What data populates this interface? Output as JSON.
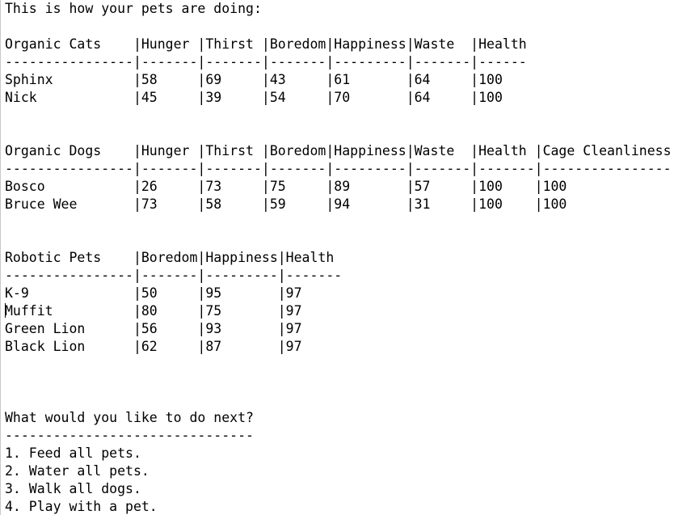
{
  "intro": "This is how your pets are doing:",
  "cats": {
    "header": "Organic Cats    |Hunger |Thirst |Boredom|Happiness|Waste  |Health",
    "separator": "----------------|-------|-------|-------|---------|-------|------",
    "rows": [
      "Sphinx          |58     |69     |43     |61       |64     |100",
      "Nick            |45     |39     |54     |70       |64     |100"
    ]
  },
  "dogs": {
    "header": "Organic Dogs    |Hunger |Thirst |Boredom|Happiness|Waste  |Health |Cage Cleanliness",
    "separator": "----------------|-------|-------|-------|---------|-------|-------|----------------",
    "rows": [
      "Bosco           |26     |73     |75     |89       |57     |100    |100",
      "Bruce Wee       |73     |58     |59     |94       |31     |100    |100"
    ]
  },
  "robots": {
    "header": "Robotic Pets    |Boredom|Happiness|Health",
    "separator": "----------------|-------|---------|-------",
    "rows": [
      "K-9             |50     |95       |97",
      "Muffit          |80     |75       |97",
      "Green Lion      |56     |93       |97",
      "Black Lion      |62     |87       |97"
    ]
  },
  "menu": {
    "prompt": "What would you like to do next?",
    "separator": "-------------------------------",
    "options": [
      "1. Feed all pets.",
      "2. Water all pets.",
      "3. Walk all dogs.",
      "4. Play with a pet."
    ]
  }
}
